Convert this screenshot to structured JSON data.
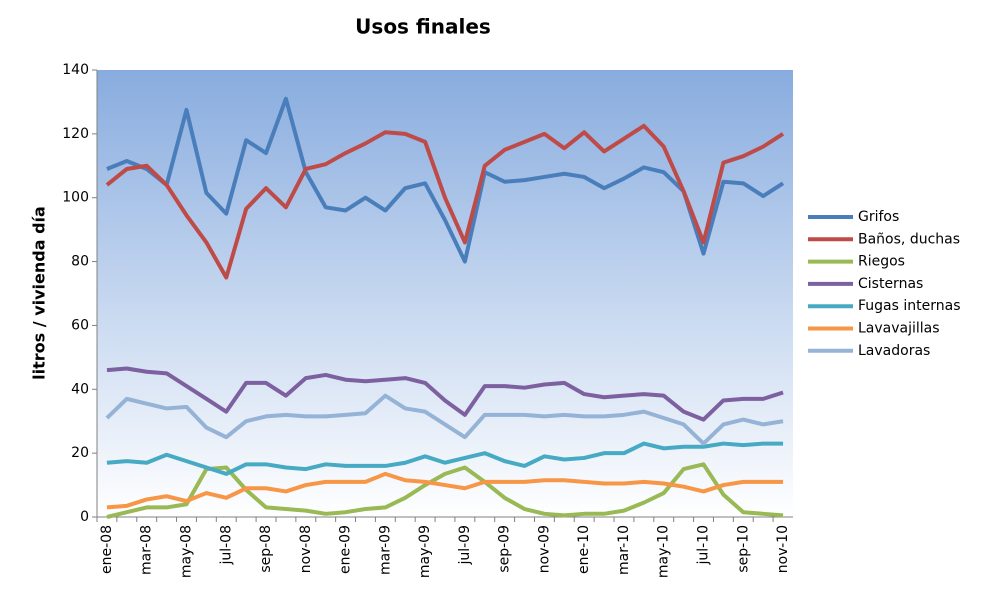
{
  "chart_data": {
    "type": "line",
    "title": "Usos finales",
    "y_label": "litros / vivienda día",
    "categories": [
      "ene-08",
      null,
      "mar-08",
      null,
      "may-08",
      null,
      "jul-08",
      null,
      "sep-08",
      null,
      "nov-08",
      null,
      "ene-09",
      null,
      "mar-09",
      null,
      "may-09",
      null,
      "jul-09",
      null,
      "sep-09",
      null,
      "nov-09",
      null,
      "ene-10",
      null,
      "mar-10",
      null,
      "may-10",
      null,
      "jul-10",
      null,
      "sep-10",
      null,
      "nov-10"
    ],
    "series": [
      {
        "name": "Grifos",
        "color": "#4a7ebb",
        "values": [
          109,
          111.5,
          109,
          104,
          127.5,
          101.5,
          95,
          118,
          114,
          131,
          108,
          97,
          96,
          100,
          96,
          103,
          104.5,
          93,
          80,
          108,
          105,
          105.5,
          106.5,
          107.5,
          106.5,
          103,
          106,
          109.5,
          108,
          102,
          82.5,
          105,
          104.5,
          100.5,
          104.5
        ]
      },
      {
        "name": "Baños, duchas",
        "color": "#be4b48",
        "values": [
          104,
          109,
          110,
          104,
          94.5,
          86,
          75,
          96.5,
          103,
          97,
          109,
          110.5,
          114,
          117,
          120.5,
          120,
          117.5,
          100,
          86,
          110,
          115,
          117.5,
          120,
          115.5,
          120.5,
          114.5,
          118.5,
          122.5,
          116,
          102,
          86,
          111,
          113,
          116,
          120
        ]
      },
      {
        "name": "Riegos",
        "color": "#98b954",
        "values": [
          0,
          1.5,
          3,
          3,
          4,
          15,
          15.5,
          8.5,
          3,
          2.5,
          2,
          1,
          1.5,
          2.5,
          3,
          6,
          10,
          13.5,
          15.5,
          11,
          6,
          2.5,
          1,
          0.5,
          1,
          1,
          2,
          4.5,
          7.5,
          15,
          16.5,
          7,
          1.5,
          1,
          0.5
        ]
      },
      {
        "name": "Cisternas",
        "color": "#7d60a0",
        "values": [
          46,
          46.5,
          45.5,
          45,
          41,
          37,
          33,
          42,
          42,
          38,
          43.5,
          44.5,
          43,
          42.5,
          43,
          43.5,
          42,
          36.5,
          32,
          41,
          41,
          40.5,
          41.5,
          42,
          38.5,
          37.5,
          38,
          38.5,
          38,
          33,
          30.5,
          36.5,
          37,
          37,
          39
        ]
      },
      {
        "name": "Fugas internas",
        "color": "#46aac5",
        "values": [
          17,
          17.5,
          17,
          19.5,
          17.5,
          15.5,
          13.5,
          16.5,
          16.5,
          15.5,
          15,
          16.5,
          16,
          16,
          16,
          17,
          19,
          17,
          18.5,
          20,
          17.5,
          16,
          19,
          18,
          18.5,
          20,
          20,
          23,
          21.5,
          22,
          22,
          23,
          22.5,
          23,
          23
        ]
      },
      {
        "name": "Lavavajillas",
        "color": "#f79646",
        "values": [
          3,
          3.5,
          5.5,
          6.5,
          5,
          7.5,
          6,
          9,
          9,
          8,
          10,
          11,
          11,
          11,
          13.5,
          11.5,
          11,
          10,
          9,
          11,
          11,
          11,
          11.5,
          11.5,
          11,
          10.5,
          10.5,
          11,
          10.5,
          9.5,
          8,
          10,
          11,
          11,
          11
        ]
      },
      {
        "name": "Lavadoras",
        "color": "#95b3d7",
        "values": [
          31,
          37,
          35.5,
          34,
          34.5,
          28,
          25,
          30,
          31.5,
          32,
          31.5,
          31.5,
          32,
          32.5,
          38,
          34,
          33,
          29,
          25,
          32,
          32,
          32,
          31.5,
          32,
          31.5,
          31.5,
          32,
          33,
          31,
          29,
          23,
          29,
          30.5,
          29,
          30
        ]
      }
    ],
    "ylim": [
      0,
      140
    ],
    "yticks": [
      0,
      20,
      40,
      60,
      80,
      100,
      120,
      140
    ],
    "grid": false,
    "legend": "right"
  }
}
